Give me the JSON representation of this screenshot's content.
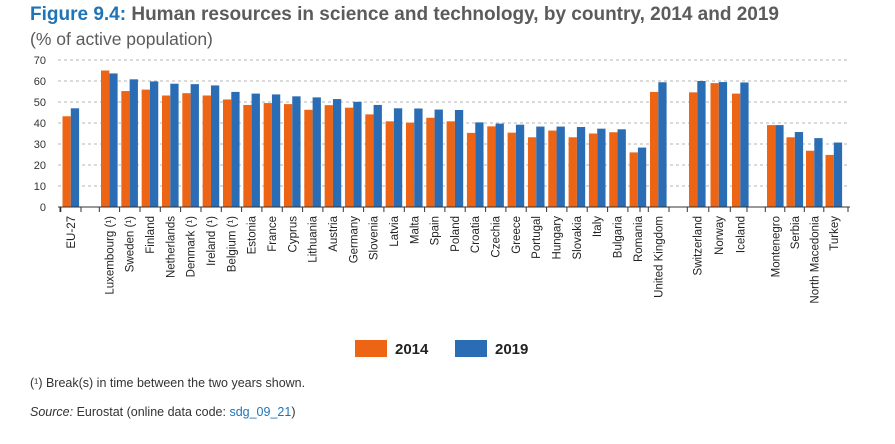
{
  "header": {
    "figure_label": "Figure 9.4:",
    "title": "Human resources in science and technology, by country, 2014 and 2019",
    "subtitle": "(% of active population)"
  },
  "footnote": "(¹) Break(s) in time between the two years shown.",
  "source": {
    "label": "Source:",
    "text": " Eurostat (online data code: ",
    "code": "sdg_09_21",
    "close": ")"
  },
  "colors": {
    "2014": "#ec6414",
    "2019": "#2a6db4"
  },
  "chart_data": {
    "type": "bar",
    "ylim": [
      0,
      70
    ],
    "yticks": [
      0,
      10,
      20,
      30,
      40,
      50,
      60,
      70
    ],
    "grid": true,
    "legend_position": "bottom",
    "groups": [
      {
        "categories": [
          "EU-27"
        ]
      },
      {
        "categories": [
          "Luxembourg (¹)",
          "Sweden (¹)",
          "Finland",
          "Netherlands",
          "Denmark (¹)",
          "Ireland (¹)",
          "Belgium (¹)",
          "Estonia",
          "France",
          "Cyprus",
          "Lithuania",
          "Austria",
          "Germany",
          "Slovenia",
          "Latvia",
          "Malta",
          "Spain",
          "Poland",
          "Croatia",
          "Czechia",
          "Greece",
          "Portugal",
          "Hungary",
          "Slovakia",
          "Italy",
          "Bulgaria",
          "Romania"
        ]
      },
      {
        "categories": [
          "United Kingdom"
        ]
      },
      {
        "categories": [
          "Switzerland",
          "Norway",
          "Iceland"
        ]
      },
      {
        "categories": [
          "Montenegro",
          "Serbia",
          "North Macedonia",
          "Turkey"
        ]
      }
    ],
    "series": [
      {
        "name": "2014",
        "values": [
          43.2,
          65,
          55.2,
          55.9,
          53.1,
          54.2,
          53.1,
          51.2,
          48.6,
          49.5,
          49,
          46.3,
          48.5,
          47.3,
          44.1,
          40.8,
          40.2,
          42.5,
          40.8,
          35.3,
          38.4,
          35.4,
          33.2,
          36.4,
          33.2,
          35,
          35.6,
          26,
          54.8,
          54.6,
          59,
          54,
          39,
          33.2,
          26.8,
          24.8
        ]
      },
      {
        "name": "2019",
        "values": [
          47,
          63.6,
          60.8,
          59.8,
          58.7,
          58.5,
          57.9,
          54.8,
          54,
          53.6,
          52.7,
          52.2,
          51.4,
          50.1,
          48.6,
          47,
          46.9,
          46.4,
          46.2,
          40.3,
          39.7,
          39.2,
          38.3,
          38.3,
          38.1,
          37.3,
          37,
          28.3,
          59.4,
          60,
          59.5,
          59.3,
          39,
          35.7,
          32.8,
          30.7
        ]
      }
    ]
  }
}
